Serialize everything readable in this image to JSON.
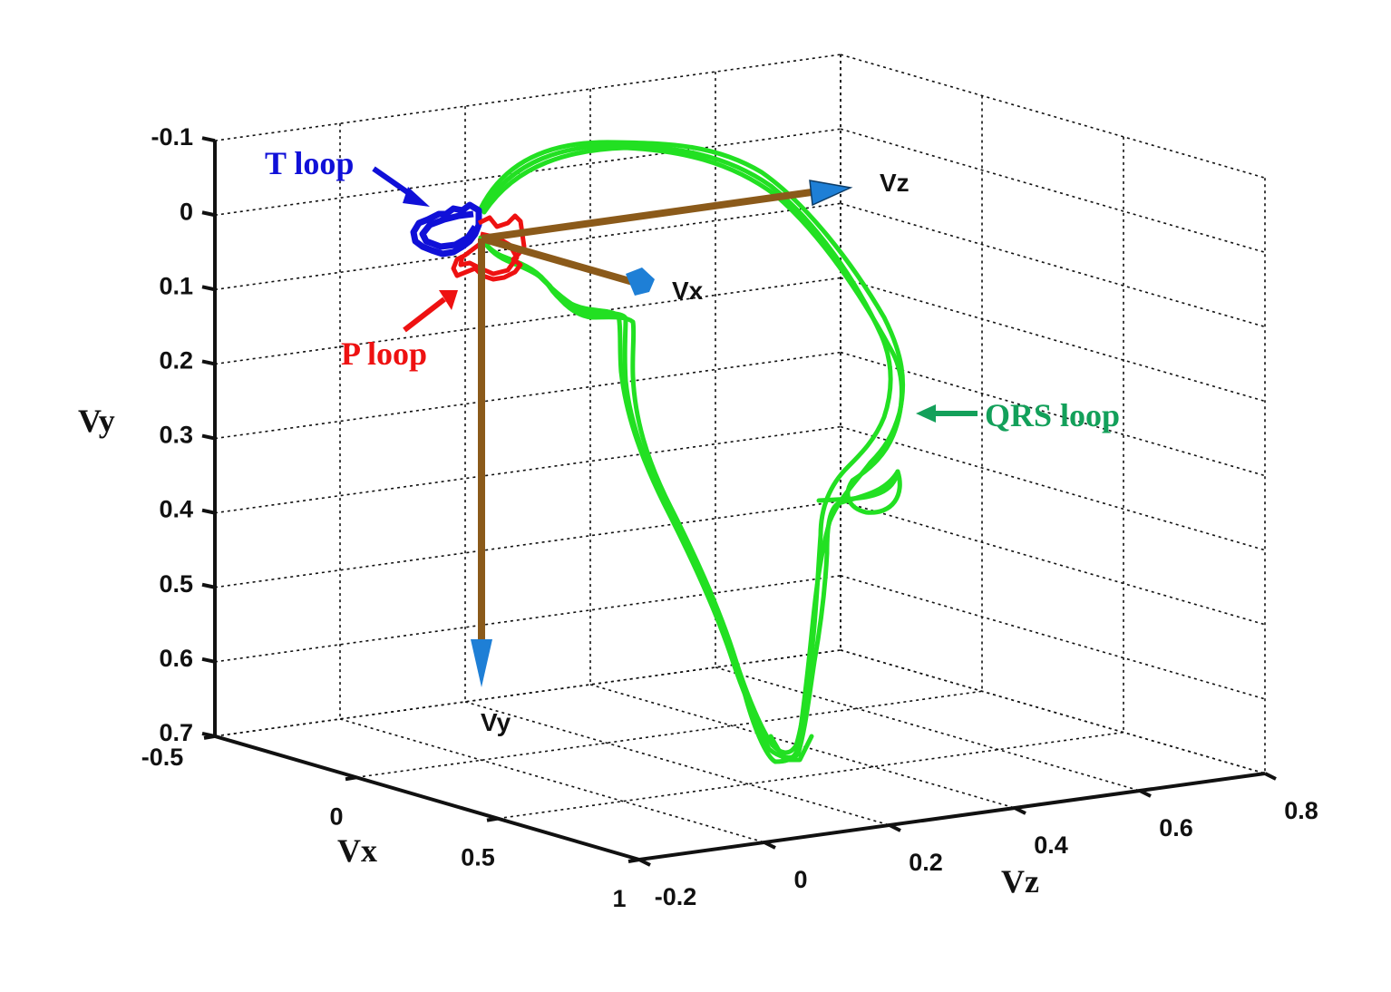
{
  "chart_data": {
    "type": "line3d",
    "title": "",
    "axes": {
      "x": {
        "label": "Vx",
        "range": [
          -0.5,
          1
        ],
        "ticks": [
          -0.5,
          0,
          0.5,
          1
        ],
        "tick_labels": [
          "-0.5",
          "0",
          "0.5",
          "1"
        ]
      },
      "y": {
        "label": "Vy",
        "range": [
          -0.1,
          0.7
        ],
        "reversed": true,
        "ticks": [
          -0.1,
          0,
          0.1,
          0.2,
          0.3,
          0.4,
          0.5,
          0.6,
          0.7
        ],
        "tick_labels": [
          "-0.1",
          "0",
          "0.1",
          "0.2",
          "0.3",
          "0.4",
          "0.5",
          "0.6",
          "0.7"
        ]
      },
      "z": {
        "label": "Vz",
        "range": [
          -0.2,
          0.8
        ],
        "ticks": [
          -0.2,
          0,
          0.2,
          0.4,
          0.6,
          0.8
        ],
        "tick_labels": [
          "-0.2",
          "0",
          "0.2",
          "0.4",
          "0.6",
          "0.8"
        ]
      }
    },
    "grid": true,
    "grid_style": "dotted",
    "legend": null,
    "reference_arrows": [
      {
        "name": "Vx",
        "from": [
          0,
          0,
          0
        ],
        "to": [
          0.56,
          0,
          0
        ],
        "color": "#8B5A1A",
        "head_color": "#1E7FD6"
      },
      {
        "name": "Vy",
        "from": [
          0,
          0,
          0
        ],
        "to": [
          0,
          0.6,
          0
        ],
        "color": "#8B5A1A",
        "head_color": "#1E7FD6"
      },
      {
        "name": "Vz",
        "from": [
          0,
          0,
          0
        ],
        "to": [
          0,
          0,
          0.54
        ],
        "color": "#8B5A1A",
        "head_color": "#1E7FD6"
      }
    ],
    "series": [
      {
        "name": "QRS loop",
        "color": "#22E022",
        "label_color": "#13A05A",
        "beats": 3,
        "approx_points_vx_vy_vz": [
          [
            0,
            0,
            0
          ],
          [
            0.05,
            -0.08,
            0.1
          ],
          [
            0.2,
            -0.1,
            0.3
          ],
          [
            0.35,
            -0.07,
            0.5
          ],
          [
            0.55,
            0.12,
            0.62
          ],
          [
            0.7,
            0.3,
            0.6
          ],
          [
            0.8,
            0.4,
            0.45
          ],
          [
            0.95,
            0.62,
            0.25
          ],
          [
            0.9,
            0.45,
            0.15
          ],
          [
            0.7,
            0.2,
            0.12
          ],
          [
            0.5,
            0.1,
            0.1
          ],
          [
            0.2,
            0.06,
            0.05
          ],
          [
            0,
            0,
            0
          ]
        ]
      },
      {
        "name": "T loop",
        "color": "#1010D8",
        "approx_center_vx_vy_vz": [
          -0.1,
          0.02,
          -0.05
        ],
        "approx_radius": 0.04
      },
      {
        "name": "P loop",
        "color": "#EE1111",
        "approx_center_vx_vy_vz": [
          0.02,
          0.06,
          0.02
        ],
        "approx_radius": 0.04
      }
    ],
    "annotations": [
      {
        "text": "T loop",
        "color": "#1010D8",
        "points_to": "T loop"
      },
      {
        "text": "P loop",
        "color": "#EE1111",
        "points_to": "P loop"
      },
      {
        "text": "QRS loop",
        "color": "#13A05A",
        "points_to": "QRS loop"
      }
    ]
  },
  "labels": {
    "axis_vx": "Vx",
    "axis_vy": "Vy",
    "axis_vz": "Vz",
    "arrow_vx": "Vx",
    "arrow_vy": "Vy",
    "arrow_vz": "Vz",
    "t_loop": "T loop",
    "p_loop": "P loop",
    "qrs_loop": "QRS loop"
  },
  "ticks": {
    "vy": [
      "-0.1",
      "0",
      "0.1",
      "0.2",
      "0.3",
      "0.4",
      "0.5",
      "0.6",
      "0.7"
    ],
    "vx": [
      "-0.5",
      "0",
      "0.5",
      "1"
    ],
    "vz": [
      "-0.2",
      "0",
      "0.2",
      "0.4",
      "0.6",
      "0.8"
    ]
  },
  "colors": {
    "qrs": "#22E022",
    "qrs_label": "#13A05A",
    "t_loop": "#1010D8",
    "p_loop": "#EE1111",
    "arrow_shaft": "#8B5A1A",
    "arrow_head": "#1E7FD6"
  }
}
